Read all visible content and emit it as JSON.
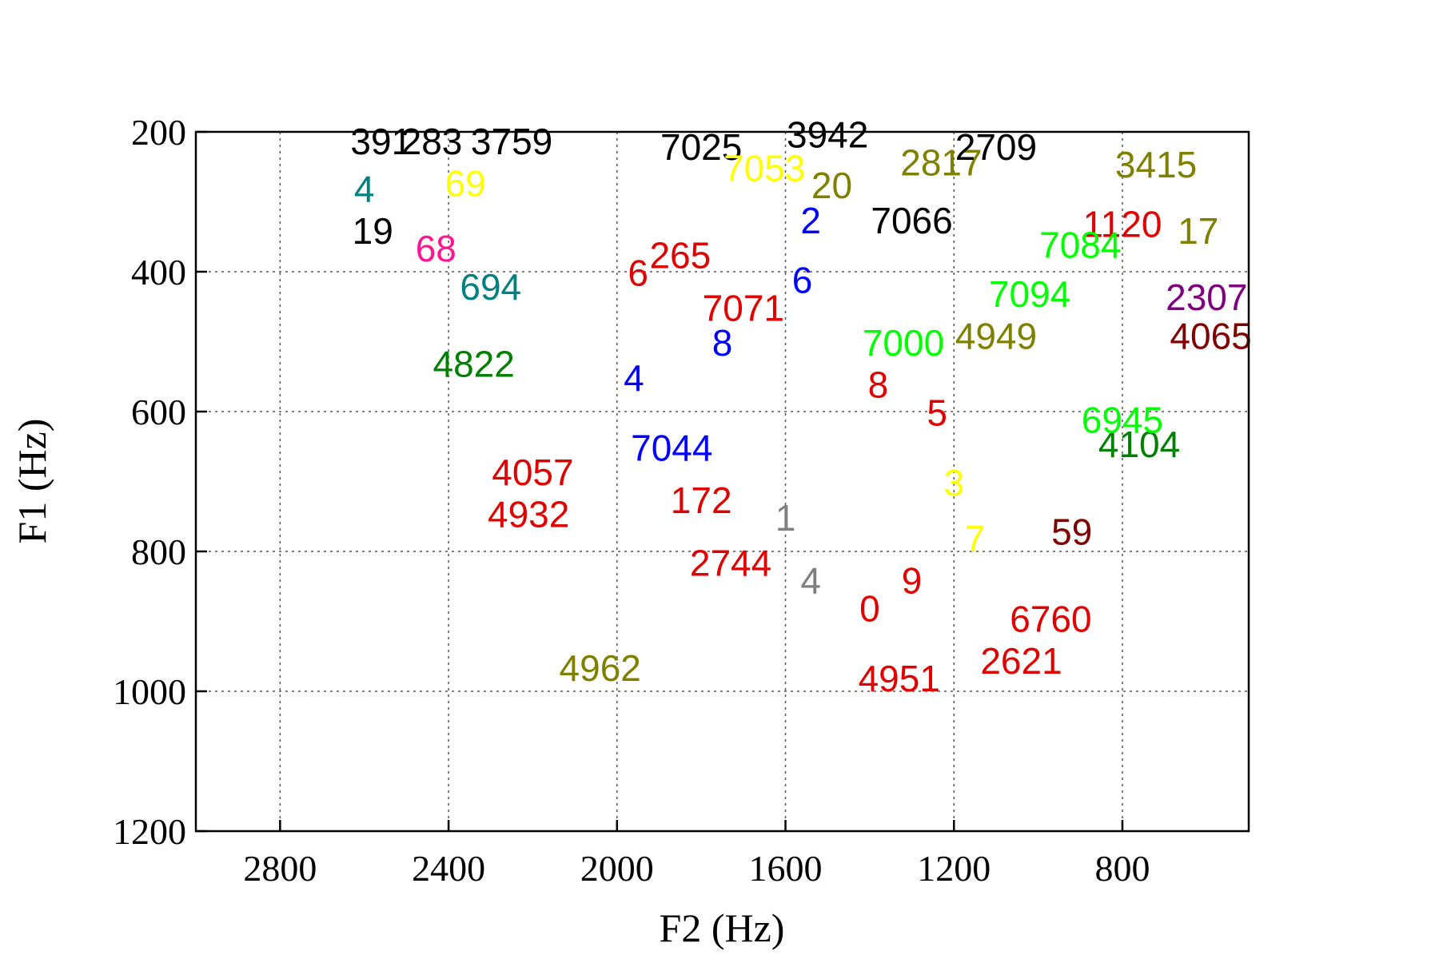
{
  "chart_data": {
    "type": "scatter",
    "title": "",
    "xlabel": "F2 (Hz)",
    "ylabel": "F1 (Hz)",
    "xlim": [
      3000,
      500
    ],
    "ylim": [
      1200,
      200
    ],
    "x_reversed": true,
    "y_reversed": true,
    "x_ticks": [
      2800,
      2400,
      2000,
      1600,
      1200,
      800
    ],
    "y_ticks": [
      200,
      400,
      600,
      800,
      1000,
      1200
    ],
    "grid": true,
    "legend": "none",
    "marker": "text labels (token IDs)",
    "points": [
      {
        "label": "3942",
        "x": 1500,
        "y": 222,
        "color": "#000000"
      },
      {
        "label": "391",
        "x": 2560,
        "y": 232,
        "color": "#000000"
      },
      {
        "label": "283",
        "x": 2440,
        "y": 232,
        "color": "#000000"
      },
      {
        "label": "3759",
        "x": 2250,
        "y": 232,
        "color": "#000000"
      },
      {
        "label": "7025",
        "x": 1800,
        "y": 240,
        "color": "#000000"
      },
      {
        "label": "4",
        "x": 2600,
        "y": 300,
        "color": "#008080"
      },
      {
        "label": "69",
        "x": 2360,
        "y": 292,
        "color": "#ffff00"
      },
      {
        "label": "7053",
        "x": 1650,
        "y": 270,
        "color": "#ffff00"
      },
      {
        "label": "7066",
        "x": 1300,
        "y": 345,
        "color": "#000000"
      },
      {
        "label": "19",
        "x": 2580,
        "y": 360,
        "color": "#000000"
      },
      {
        "label": "68",
        "x": 2430,
        "y": 385,
        "color": "#ff1493"
      },
      {
        "label": "265",
        "x": 1850,
        "y": 395,
        "color": "#e00000"
      },
      {
        "label": "20",
        "x": 1490,
        "y": 295,
        "color": "#808000"
      },
      {
        "label": "2817",
        "x": 1230,
        "y": 262,
        "color": "#808000"
      },
      {
        "label": "2709",
        "x": 1100,
        "y": 240,
        "color": "#000000"
      },
      {
        "label": "3415",
        "x": 720,
        "y": 265,
        "color": "#808000"
      },
      {
        "label": "17",
        "x": 620,
        "y": 360,
        "color": "#808000"
      },
      {
        "label": "1120",
        "x": 800,
        "y": 350,
        "color": "#e00000"
      },
      {
        "label": "7084",
        "x": 900,
        "y": 380,
        "color": "#00ff00"
      },
      {
        "label": "2307",
        "x": 600,
        "y": 455,
        "color": "#800080"
      },
      {
        "label": "4065",
        "x": 590,
        "y": 510,
        "color": "#800000"
      },
      {
        "label": "7094",
        "x": 1020,
        "y": 450,
        "color": "#00ff00"
      },
      {
        "label": "7071",
        "x": 1700,
        "y": 470,
        "color": "#e00000"
      },
      {
        "label": "4949",
        "x": 1100,
        "y": 510,
        "color": "#808000"
      },
      {
        "label": "694",
        "x": 2300,
        "y": 440,
        "color": "#008080"
      },
      {
        "label": "4822",
        "x": 2340,
        "y": 550,
        "color": "#008000"
      },
      {
        "label": "7044",
        "x": 1870,
        "y": 670,
        "color": "#0000ff"
      },
      {
        "label": "4057",
        "x": 2200,
        "y": 705,
        "color": "#e00000"
      },
      {
        "label": "4932",
        "x": 2210,
        "y": 765,
        "color": "#e00000"
      },
      {
        "label": "172",
        "x": 1800,
        "y": 745,
        "color": "#e00000"
      },
      {
        "label": "2744",
        "x": 1730,
        "y": 835,
        "color": "#e00000"
      },
      {
        "label": "4962",
        "x": 2040,
        "y": 985,
        "color": "#808000"
      },
      {
        "label": "6760",
        "x": 970,
        "y": 915,
        "color": "#e00000"
      },
      {
        "label": "2621",
        "x": 1040,
        "y": 975,
        "color": "#e00000"
      },
      {
        "label": "4951",
        "x": 1330,
        "y": 1000,
        "color": "#e00000"
      },
      {
        "label": "59",
        "x": 920,
        "y": 790,
        "color": "#800000"
      },
      {
        "label": "4104",
        "x": 760,
        "y": 665,
        "color": "#008000"
      },
      {
        "label": "6945",
        "x": 800,
        "y": 630,
        "color": "#00ff00"
      },
      {
        "label": "2",
        "x": 1540,
        "y": 345,
        "color": "#0000ff"
      },
      {
        "label": "6",
        "x": 1560,
        "y": 430,
        "color": "#0000ff"
      },
      {
        "label": "7000",
        "x": 1320,
        "y": 520,
        "color": "#00ff00"
      },
      {
        "label": "8",
        "x": 1380,
        "y": 580,
        "color": "#e00000"
      },
      {
        "label": "5",
        "x": 1240,
        "y": 620,
        "color": "#e00000"
      },
      {
        "label": "3",
        "x": 1200,
        "y": 720,
        "color": "#ffff00"
      },
      {
        "label": "7",
        "x": 1150,
        "y": 800,
        "color": "#ffff00"
      },
      {
        "label": "9",
        "x": 1300,
        "y": 860,
        "color": "#e00000"
      },
      {
        "label": "0",
        "x": 1400,
        "y": 900,
        "color": "#e00000"
      },
      {
        "label": "1",
        "x": 1600,
        "y": 770,
        "color": "#808080"
      },
      {
        "label": "4",
        "x": 1540,
        "y": 860,
        "color": "#808080"
      },
      {
        "label": "8",
        "x": 1750,
        "y": 520,
        "color": "#0000ff"
      },
      {
        "label": "6",
        "x": 1950,
        "y": 420,
        "color": "#e00000"
      },
      {
        "label": "4",
        "x": 1960,
        "y": 570,
        "color": "#0000ff"
      }
    ]
  }
}
